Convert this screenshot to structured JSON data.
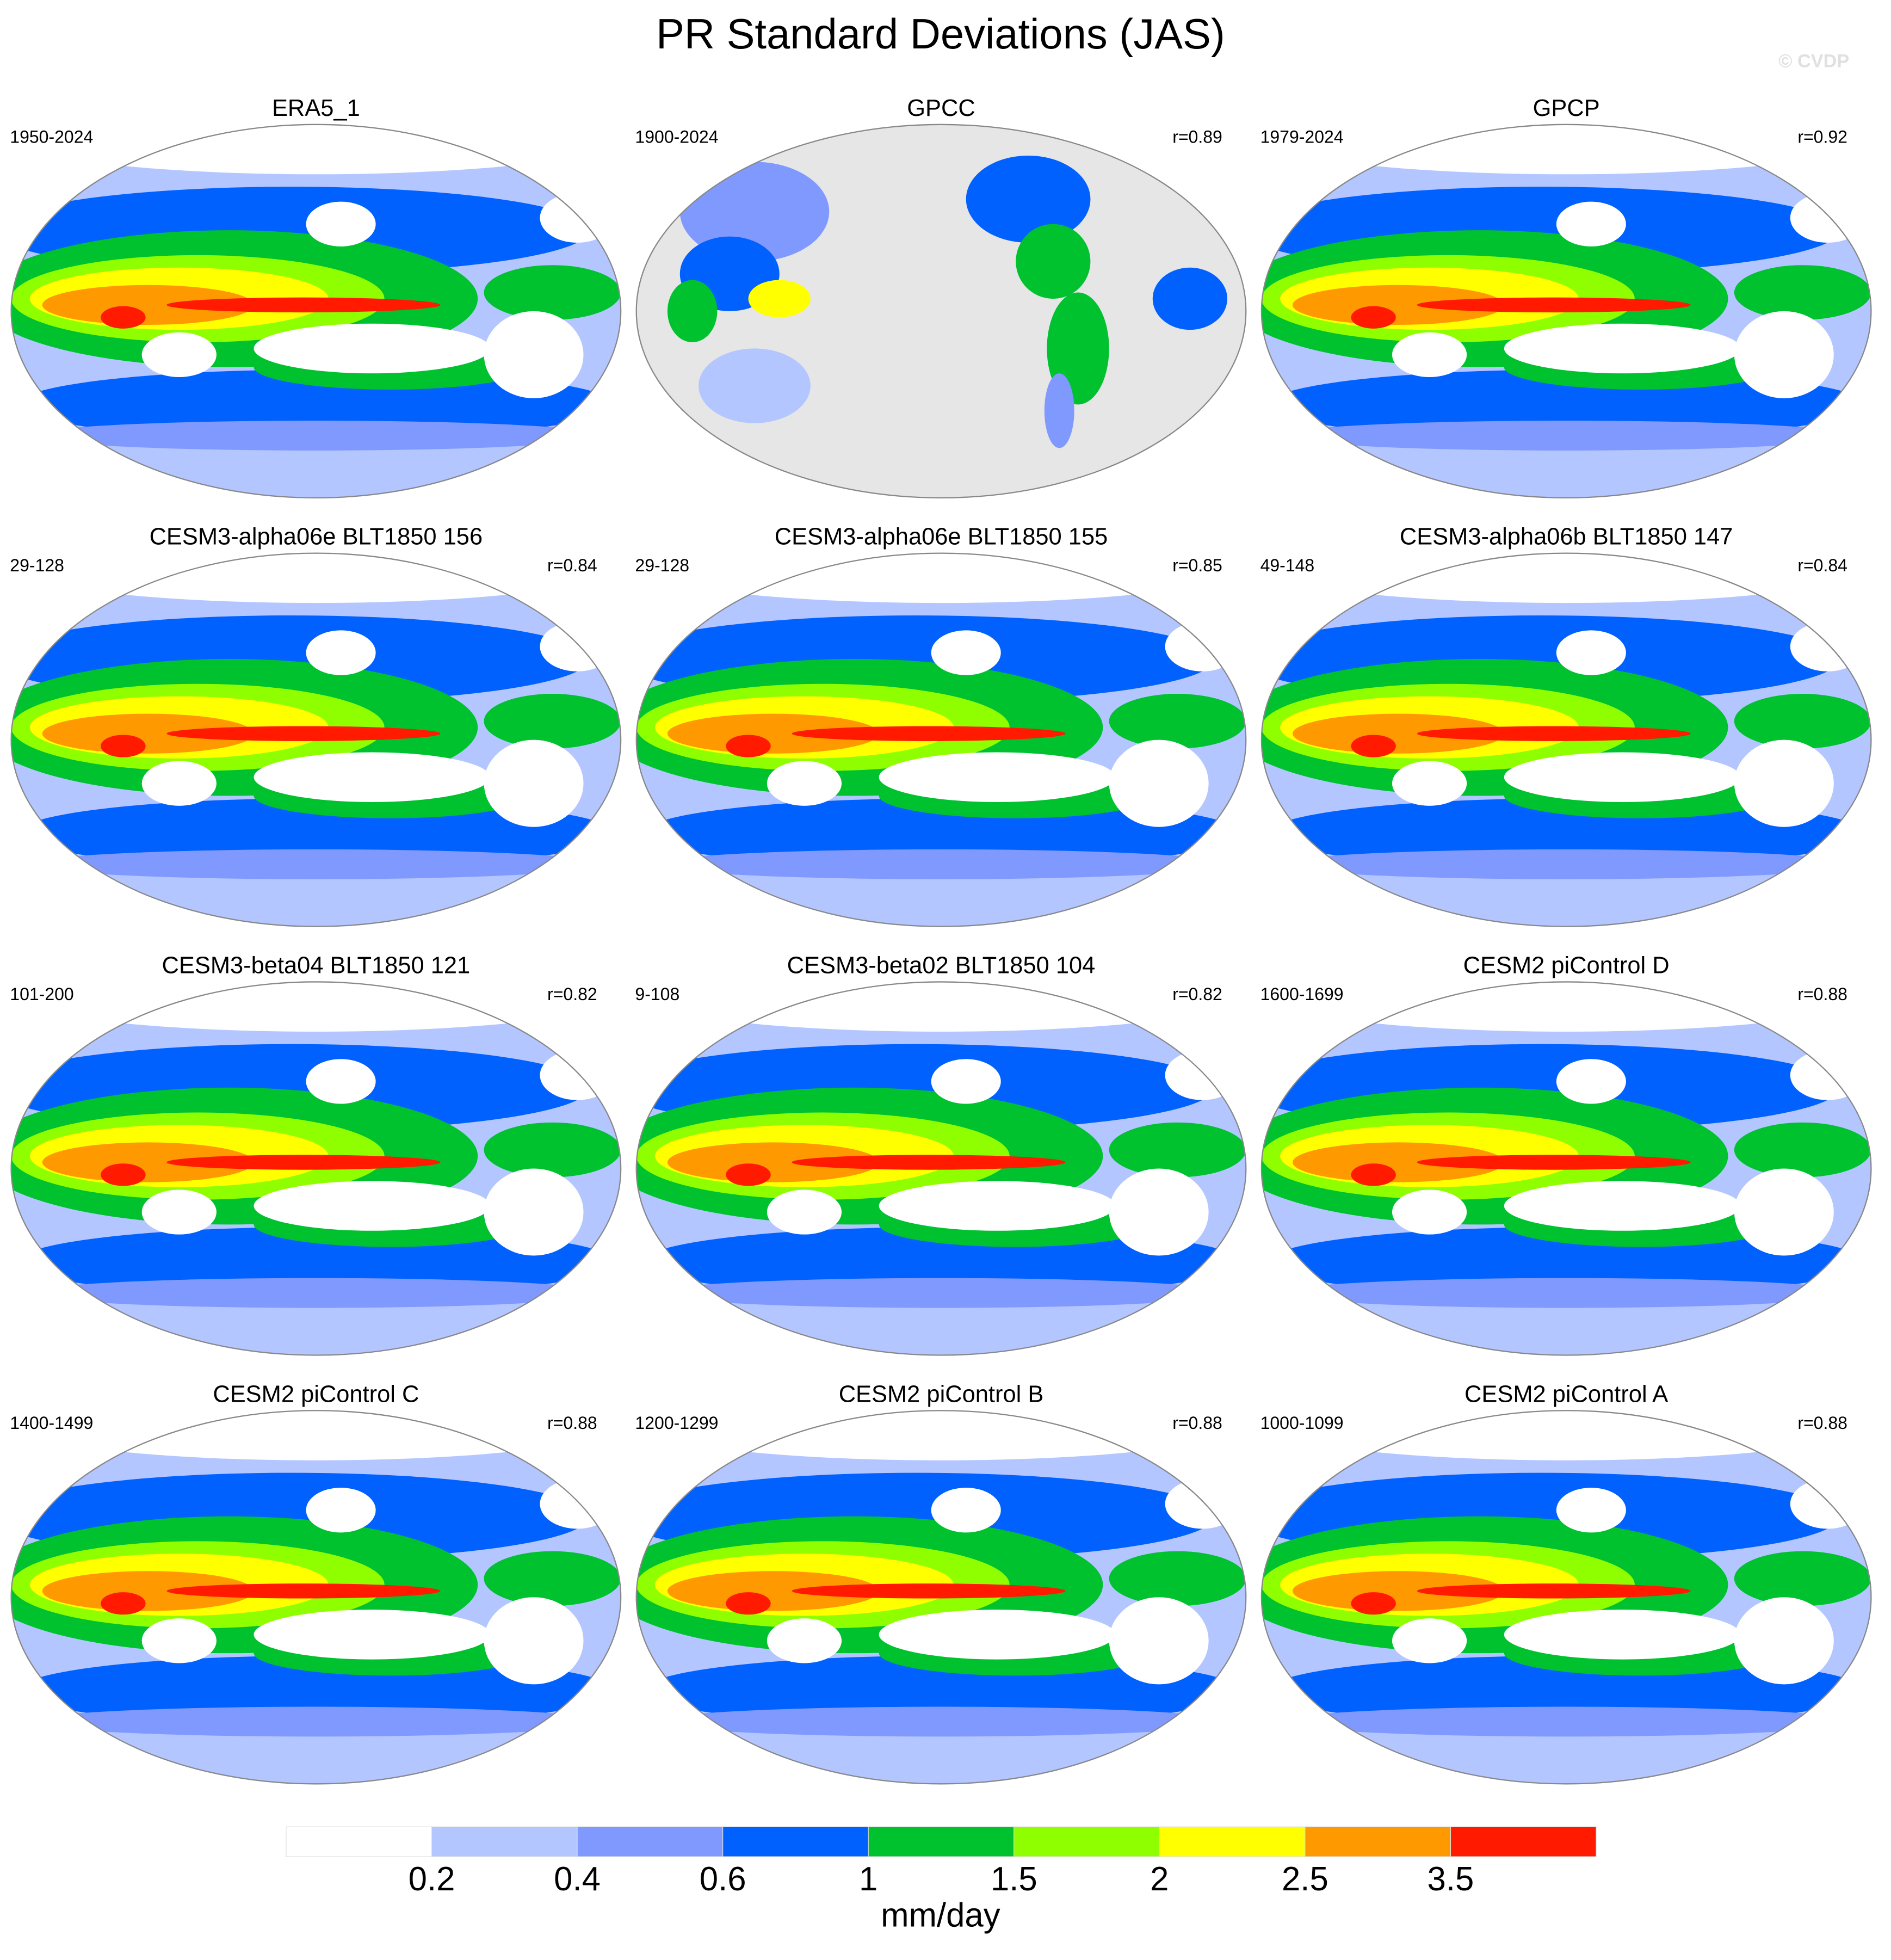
{
  "title": "PR Standard Deviations (JAS)",
  "watermark": "© CVDP",
  "panels": [
    {
      "title": "ERA5_1",
      "period": "1950-2024"
    },
    {
      "title": "GPCC",
      "period": "1900-2024",
      "r": "r=0.89",
      "ocean_color": "#e6e6e6"
    },
    {
      "title": "GPCP",
      "period": "1979-2024",
      "r": "r=0.92"
    },
    {
      "title": "CESM3-alpha06e BLT1850 156",
      "period": "29-128",
      "r": "r=0.84"
    },
    {
      "title": "CESM3-alpha06e BLT1850 155",
      "period": "29-128",
      "r": "r=0.85"
    },
    {
      "title": "CESM3-alpha06b BLT1850 147",
      "period": "49-148",
      "r": "r=0.84"
    },
    {
      "title": "CESM3-beta04 BLT1850 121",
      "period": "101-200",
      "r": "r=0.82"
    },
    {
      "title": "CESM3-beta02 BLT1850 104",
      "period": "9-108",
      "r": "r=0.82"
    },
    {
      "title": "CESM2 piControl D",
      "period": "1600-1699",
      "r": "r=0.88"
    },
    {
      "title": "CESM2 piControl C",
      "period": "1400-1499",
      "r": "r=0.88"
    },
    {
      "title": "CESM2 piControl B",
      "period": "1200-1299",
      "r": "r=0.88"
    },
    {
      "title": "CESM2 piControl A",
      "period": "1000-1099",
      "r": "r=0.88"
    }
  ],
  "colorbar": {
    "levels": [
      0.2,
      0.4,
      0.6,
      1,
      1.5,
      2,
      2.5,
      3.5
    ],
    "colors": [
      "#ffffff",
      "#b4c6ff",
      "#8099ff",
      "#0061ff",
      "#00c22f",
      "#8fff00",
      "#ffff00",
      "#ff9900",
      "#ff1a00"
    ],
    "units": "mm/day"
  }
}
